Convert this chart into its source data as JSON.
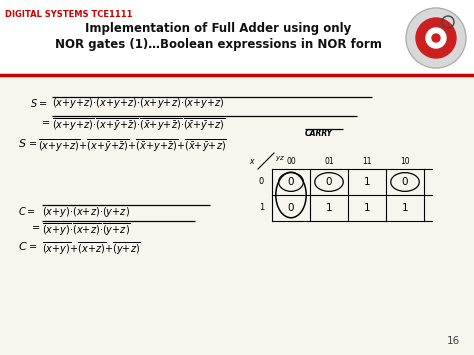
{
  "bg_color": "#ede8dc",
  "header_bg": "#ffffff",
  "content_bg": "#f8f5ee",
  "title_text1": "Implementation of Full Adder using only",
  "title_text2": "NOR gates (1)…Boolean expressions in NOR form",
  "header_label": "DIGITAL SYSTEMS TCE1111",
  "header_label_color": "#cc0000",
  "red_line_color": "#cc0000",
  "page_number": "16",
  "slide_bg": "#ede8dc",
  "watermark_color": "#ccc5b5"
}
